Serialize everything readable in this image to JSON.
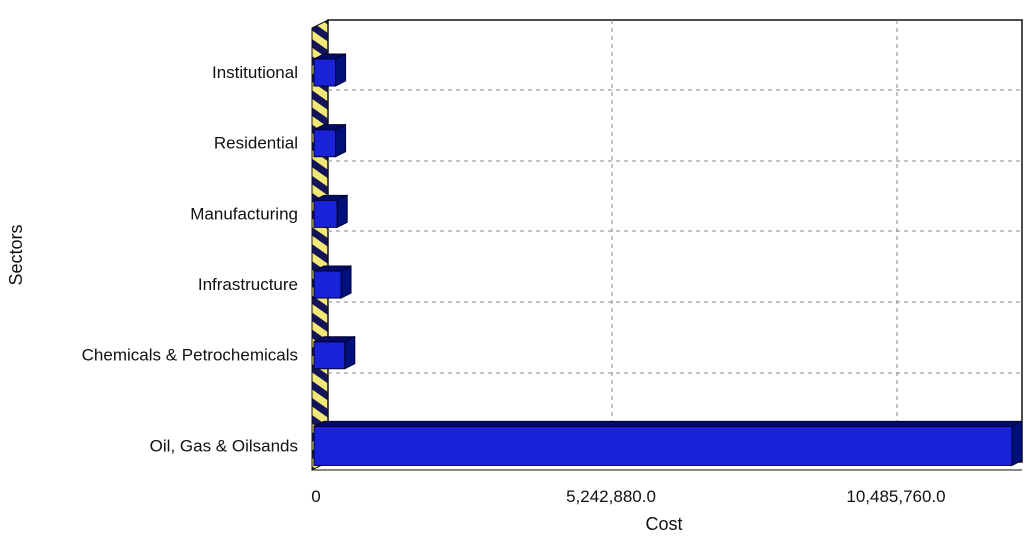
{
  "chart_data": {
    "type": "bar",
    "orientation": "horizontal",
    "style": "3d",
    "xlabel": "Cost",
    "ylabel": "Sectors",
    "categories": [
      "Institutional",
      "Residential",
      "Manufacturing",
      "Infrastructure",
      "Chemicals & Petrochemicals",
      "Oil, Gas & Oilsands"
    ],
    "values": [
      250000,
      250000,
      280000,
      350000,
      420000,
      12700000
    ],
    "xlim": [
      0,
      12700000
    ],
    "x_ticks": [
      {
        "value": 0,
        "label": "0"
      },
      {
        "value": 5242880,
        "label": "5,242,880.0"
      },
      {
        "value": 10485760,
        "label": "10,485,760.0"
      }
    ],
    "grid": true,
    "legend": "none",
    "colors": {
      "bar_front": "#1a22d8",
      "bar_top": "#000c66",
      "bar_side": "#00107a",
      "wall_stripe_a": "#f2e878",
      "wall_stripe_b": "#14145a",
      "grid": "#888888"
    }
  }
}
